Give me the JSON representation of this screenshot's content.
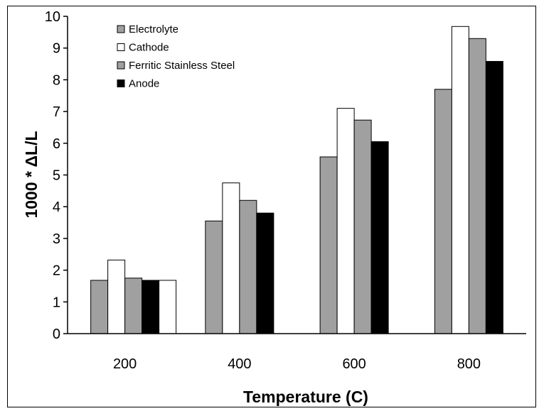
{
  "chart_data": {
    "type": "bar",
    "categories": [
      "200",
      "400",
      "600",
      "800"
    ],
    "series": [
      {
        "name": "Electrolyte",
        "color": "#a0a0a0",
        "values": [
          1.68,
          3.55,
          5.57,
          7.7
        ]
      },
      {
        "name": "Cathode",
        "color": "#ffffff",
        "values": [
          2.32,
          4.75,
          7.1,
          9.68
        ]
      },
      {
        "name": "Ferritic Stainless Steel",
        "color": "#a0a0a0",
        "values": [
          1.75,
          4.2,
          6.73,
          9.3
        ]
      },
      {
        "name": "Anode",
        "color": "#000000",
        "values": [
          1.68,
          3.8,
          6.05,
          8.58
        ]
      }
    ],
    "extra_bar": {
      "category": "200",
      "color": "#ffffff",
      "value": 1.68
    },
    "xlabel": "Temperature (C)",
    "ylabel": "1000 * ΔL/L",
    "ylim": [
      0,
      10
    ],
    "yticks": [
      "0",
      "1",
      "2",
      "3",
      "4",
      "5",
      "6",
      "7",
      "8",
      "9",
      "10"
    ],
    "grid": false,
    "legend_position": "top-left"
  }
}
